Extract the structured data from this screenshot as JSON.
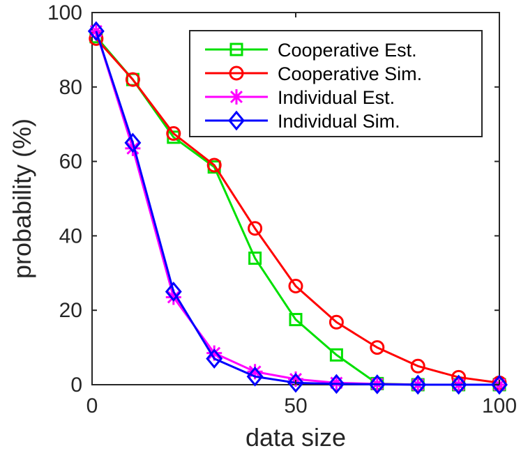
{
  "chart_data": {
    "type": "line",
    "title": "",
    "xlabel": "data size",
    "ylabel": "probability (%)",
    "xlim": [
      0,
      100
    ],
    "ylim": [
      0,
      100
    ],
    "xticks": [
      0,
      50,
      100
    ],
    "yticks": [
      0,
      20,
      40,
      60,
      80,
      100
    ],
    "grid": false,
    "legend_position": "top-right",
    "series": [
      {
        "name": "Cooperative Est.",
        "color": "#00e000",
        "marker": "square",
        "x": [
          1,
          10,
          20,
          30,
          40,
          50,
          60,
          70,
          80,
          90,
          100
        ],
        "y": [
          93.5,
          82,
          66.5,
          58.5,
          34,
          17.5,
          8,
          0.3,
          0,
          0,
          0
        ]
      },
      {
        "name": "Cooperative Sim.",
        "color": "#ff0000",
        "marker": "circle",
        "x": [
          1,
          10,
          20,
          30,
          40,
          50,
          60,
          70,
          80,
          90,
          100
        ],
        "y": [
          93,
          82,
          67.5,
          59,
          42,
          26.5,
          16.8,
          10,
          5,
          2,
          0.5
        ]
      },
      {
        "name": "Individual Est.",
        "color": "#ff00ff",
        "marker": "asterisk",
        "x": [
          1,
          10,
          20,
          30,
          40,
          50,
          60,
          70,
          80,
          90,
          100
        ],
        "y": [
          95,
          63.5,
          23.5,
          8.5,
          3.5,
          1.5,
          0.5,
          0.2,
          0,
          0,
          0
        ]
      },
      {
        "name": "Individual Sim.",
        "color": "#0000ff",
        "marker": "diamond",
        "x": [
          1,
          10,
          20,
          30,
          40,
          50,
          60,
          70,
          80,
          90,
          100
        ],
        "y": [
          95,
          65,
          25,
          7,
          2.2,
          0.5,
          0.2,
          0.1,
          0,
          0,
          0
        ]
      }
    ]
  }
}
